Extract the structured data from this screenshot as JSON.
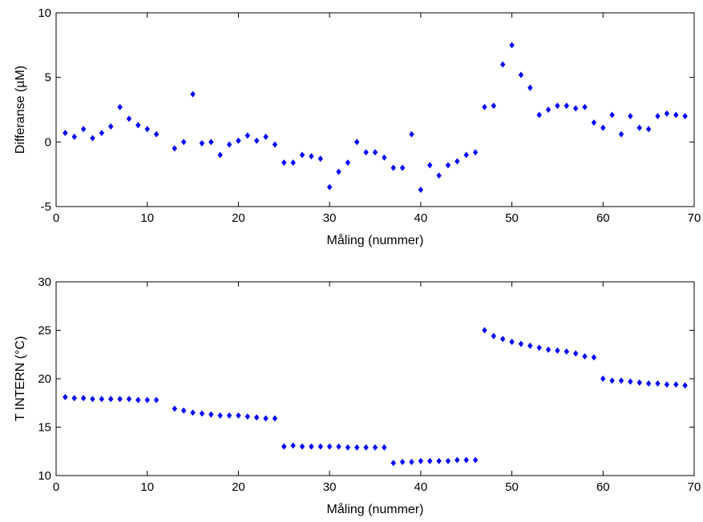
{
  "chart_data": [
    {
      "type": "scatter",
      "title": "",
      "xlabel": "Måling (nummer)",
      "ylabel": "Differanse (µM)",
      "xlim": [
        0,
        70
      ],
      "ylim": [
        -5,
        10
      ],
      "xticks": [
        0,
        10,
        20,
        30,
        40,
        50,
        60,
        70
      ],
      "yticks": [
        -5,
        0,
        5,
        10
      ],
      "marker": "diamond",
      "marker_color": "#0000ff",
      "grid": false,
      "x": [
        1,
        2,
        3,
        4,
        5,
        6,
        7,
        8,
        9,
        10,
        11,
        13,
        14,
        15,
        16,
        17,
        18,
        19,
        20,
        21,
        22,
        23,
        24,
        25,
        26,
        27,
        28,
        29,
        30,
        31,
        32,
        33,
        34,
        35,
        36,
        37,
        38,
        39,
        40,
        41,
        42,
        43,
        44,
        45,
        46,
        47,
        48,
        49,
        50,
        51,
        52,
        53,
        54,
        55,
        56,
        57,
        58,
        59,
        60,
        61,
        62,
        63,
        64,
        65,
        66,
        67,
        68,
        69
      ],
      "y": [
        0.7,
        0.4,
        1.0,
        0.3,
        0.7,
        1.2,
        2.7,
        1.8,
        1.3,
        1.0,
        0.6,
        -0.5,
        0.0,
        3.7,
        -0.1,
        0.0,
        -1.0,
        -0.2,
        0.1,
        0.5,
        0.1,
        0.4,
        -0.2,
        -1.6,
        -1.6,
        -1.0,
        -1.1,
        -1.3,
        -3.5,
        -2.3,
        -1.6,
        0.0,
        -0.8,
        -0.8,
        -1.2,
        -2.0,
        -2.0,
        0.6,
        -3.7,
        -1.8,
        -2.6,
        -1.8,
        -1.5,
        -1.0,
        -0.8,
        2.7,
        2.8,
        6.0,
        7.5,
        5.2,
        4.2,
        2.1,
        2.5,
        2.8,
        2.8,
        2.6,
        2.7,
        1.5,
        1.1,
        2.1,
        0.6,
        2.0,
        1.1,
        1.0,
        2.0,
        2.2,
        2.1,
        2.0
      ]
    },
    {
      "type": "scatter",
      "title": "",
      "xlabel": "Måling (nummer)",
      "ylabel": "T INTERN (°C)",
      "xlim": [
        0,
        70
      ],
      "ylim": [
        10,
        30
      ],
      "xticks": [
        0,
        10,
        20,
        30,
        40,
        50,
        60,
        70
      ],
      "yticks": [
        10,
        15,
        20,
        25,
        30
      ],
      "marker": "diamond",
      "marker_color": "#0000ff",
      "grid": false,
      "x": [
        1,
        2,
        3,
        4,
        5,
        6,
        7,
        8,
        9,
        10,
        11,
        13,
        14,
        15,
        16,
        17,
        18,
        19,
        20,
        21,
        22,
        23,
        24,
        25,
        26,
        27,
        28,
        29,
        30,
        31,
        32,
        33,
        34,
        35,
        36,
        37,
        38,
        39,
        40,
        41,
        42,
        43,
        44,
        45,
        46,
        47,
        48,
        49,
        50,
        51,
        52,
        53,
        54,
        55,
        56,
        57,
        58,
        59,
        60,
        61,
        62,
        63,
        64,
        65,
        66,
        67,
        68,
        69
      ],
      "y": [
        18.1,
        18.0,
        18.0,
        17.9,
        17.9,
        17.9,
        17.9,
        17.9,
        17.8,
        17.8,
        17.8,
        16.9,
        16.7,
        16.5,
        16.4,
        16.3,
        16.2,
        16.2,
        16.2,
        16.1,
        16.0,
        15.9,
        15.9,
        13.0,
        13.1,
        13.0,
        13.0,
        13.0,
        13.0,
        13.0,
        12.9,
        12.9,
        12.9,
        12.9,
        12.9,
        11.3,
        11.4,
        11.4,
        11.5,
        11.5,
        11.5,
        11.5,
        11.6,
        11.6,
        11.6,
        25.0,
        24.4,
        24.1,
        23.8,
        23.6,
        23.4,
        23.2,
        23.0,
        22.9,
        22.8,
        22.6,
        22.3,
        22.2,
        20.0,
        19.8,
        19.8,
        19.7,
        19.6,
        19.5,
        19.5,
        19.4,
        19.4,
        19.3
      ]
    }
  ]
}
